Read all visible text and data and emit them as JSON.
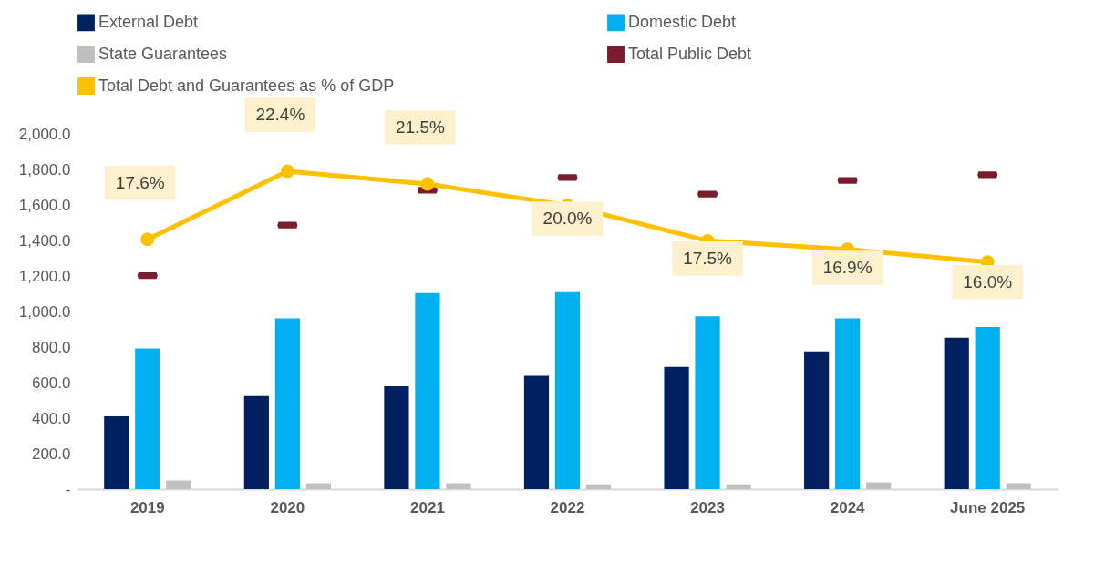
{
  "chart_data": {
    "type": "bar",
    "categories": [
      "2019",
      "2020",
      "2021",
      "2022",
      "2023",
      "2024",
      "June 2025"
    ],
    "series": [
      {
        "name": "External Debt",
        "color": "#002060",
        "values": [
          410,
          525,
          579,
          639,
          689,
          776,
          852
        ]
      },
      {
        "name": "Domestic Debt",
        "color": "#00b0f0",
        "values": [
          792,
          962,
          1104,
          1109,
          973,
          962,
          913
        ]
      },
      {
        "name": "State Guarantees",
        "color": "#bfbfbf",
        "values": [
          49,
          33,
          33,
          27,
          27,
          38,
          33
        ]
      },
      {
        "name": "Total Public Debt",
        "type": "scatter",
        "color": "#7b1c2e",
        "values": [
          1202,
          1486,
          1683,
          1754,
          1661,
          1738,
          1770
        ]
      },
      {
        "name": "Total Debt and Guarantees as % of GDP",
        "type": "line",
        "axis": "y2",
        "color": "#ffc000",
        "marker": "circle",
        "values": [
          17.6,
          22.4,
          21.5,
          20.0,
          17.5,
          16.9,
          16.0
        ],
        "value_labels": [
          "17.6%",
          "22.4%",
          "21.5%",
          "20.0%",
          "17.5%",
          "16.9%",
          "16.0%"
        ]
      }
    ],
    "ylim": [
      0,
      2000
    ],
    "yticks": [
      {
        "value": 0,
        "label": "-"
      },
      {
        "value": 200,
        "label": "200.0"
      },
      {
        "value": 400,
        "label": "400.0"
      },
      {
        "value": 600,
        "label": "600.0"
      },
      {
        "value": 800,
        "label": "800.0"
      },
      {
        "value": 1000,
        "label": "1,000.0"
      },
      {
        "value": 1200,
        "label": "1,200.0"
      },
      {
        "value": 1400,
        "label": "1,400.0"
      },
      {
        "value": 1600,
        "label": "1,600.0"
      },
      {
        "value": 1800,
        "label": "1,800.0"
      },
      {
        "value": 2000,
        "label": "2,000.0"
      }
    ],
    "grid": false,
    "legend": "top"
  }
}
